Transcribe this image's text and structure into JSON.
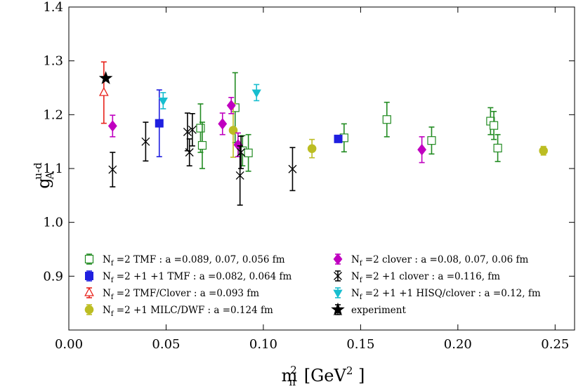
{
  "chart_data": {
    "type": "scatter",
    "title": "",
    "xlabel": "m",
    "xlabel_sub": "π",
    "xlabel_sup": "2",
    "xlabel_unit_open": "[GeV",
    "xlabel_unit_sup": "2",
    "xlabel_unit_close": " ]",
    "ylabel": "g",
    "ylabel_sub": "A",
    "ylabel_sup": "u-d",
    "xlim": [
      0.0,
      0.26
    ],
    "ylim": [
      0.8,
      1.4
    ],
    "xticks": [
      "0.00",
      "0.05",
      "0.10",
      "0.15",
      "0.20",
      "0.25"
    ],
    "xtick_values": [
      0.0,
      0.05,
      0.1,
      0.15,
      0.2,
      0.25
    ],
    "yticks": [
      "0.9",
      "1.0",
      "1.1",
      "1.2",
      "1.3",
      "1.4"
    ],
    "ytick_values": [
      0.9,
      1.0,
      1.1,
      1.2,
      1.3,
      1.4
    ],
    "grid": false,
    "legend_position": "lower center",
    "series": [
      {
        "name": "N_f =2 TMF : a =0.089, 0.07, 0.056 fm",
        "legend_parts": [
          "N",
          "f",
          " =2 TMF :  a =0.089,  0.07,  0.056 fm"
        ],
        "marker": "open-square",
        "color": "#228b22",
        "points": [
          {
            "x": 0.0677,
            "y": 1.175,
            "err": 0.045
          },
          {
            "x": 0.0686,
            "y": 1.143,
            "err": 0.043
          },
          {
            "x": 0.0855,
            "y": 1.213,
            "err": 0.065
          },
          {
            "x": 0.0893,
            "y": 1.133,
            "err": 0.028
          },
          {
            "x": 0.0923,
            "y": 1.129,
            "err": 0.034
          },
          {
            "x": 0.1415,
            "y": 1.157,
            "err": 0.026
          },
          {
            "x": 0.1635,
            "y": 1.191,
            "err": 0.032
          },
          {
            "x": 0.1865,
            "y": 1.152,
            "err": 0.025
          },
          {
            "x": 0.2168,
            "y": 1.188,
            "err": 0.025
          },
          {
            "x": 0.2185,
            "y": 1.18,
            "err": 0.026
          },
          {
            "x": 0.2205,
            "y": 1.138,
            "err": 0.025
          }
        ]
      },
      {
        "name": "N_f =2 +1 +1 TMF : a =0.082, 0.064 fm",
        "legend_parts": [
          "N",
          "f",
          " =2 +1 +1 TMF :   a =0.082,  0.064 fm"
        ],
        "marker": "filled-square",
        "color": "#1f1fe0",
        "points": [
          {
            "x": 0.0465,
            "y": 1.184,
            "err": 0.062
          },
          {
            "x": 0.1385,
            "y": 1.155,
            "err": 0.004
          }
        ]
      },
      {
        "name": "N_f =2 TMF/Clover : a =0.093 fm",
        "legend_parts": [
          "N",
          "f",
          " =2 TMF/Clover :  a =0.093 fm"
        ],
        "marker": "open-triangle-up",
        "color": "#e8231c",
        "points": [
          {
            "x": 0.018,
            "y": 1.241,
            "err": 0.057
          }
        ]
      },
      {
        "name": "N_f =2 +1 MILC/DWF : a =0.124 fm",
        "legend_parts": [
          "N",
          "f",
          " =2 +1 MILC/DWF :  a =0.124 fm"
        ],
        "marker": "filled-circle",
        "color": "#bcbd22",
        "points": [
          {
            "x": 0.0845,
            "y": 1.171,
            "err": 0.05
          },
          {
            "x": 0.125,
            "y": 1.137,
            "err": 0.017
          },
          {
            "x": 0.244,
            "y": 1.133,
            "err": 0.008
          }
        ]
      },
      {
        "name": "N_f =2 clover : a =0.08, 0.07, 0.06 fm",
        "legend_parts": [
          "N",
          "f",
          " =2 clover :  a =0.08,  0.07,  0.06 fm"
        ],
        "marker": "filled-diamond",
        "color": "#c000c0",
        "points": [
          {
            "x": 0.0225,
            "y": 1.179,
            "err": 0.02
          },
          {
            "x": 0.079,
            "y": 1.183,
            "err": 0.02
          },
          {
            "x": 0.0835,
            "y": 1.217,
            "err": 0.015
          },
          {
            "x": 0.087,
            "y": 1.144,
            "err": 0.022
          },
          {
            "x": 0.1815,
            "y": 1.135,
            "err": 0.024
          }
        ]
      },
      {
        "name": "N_f =2 +1 clover : a =0.116, fm",
        "legend_parts": [
          "N",
          "f",
          " =2 +1 clover :  a =0.116,  fm"
        ],
        "marker": "x",
        "color": "#000000",
        "points": [
          {
            "x": 0.0225,
            "y": 1.098,
            "err": 0.032
          },
          {
            "x": 0.0395,
            "y": 1.15,
            "err": 0.036
          },
          {
            "x": 0.061,
            "y": 1.168,
            "err": 0.035
          },
          {
            "x": 0.062,
            "y": 1.13,
            "err": 0.025
          },
          {
            "x": 0.0635,
            "y": 1.172,
            "err": 0.03
          },
          {
            "x": 0.088,
            "y": 1.087,
            "err": 0.055
          },
          {
            "x": 0.0885,
            "y": 1.13,
            "err": 0.03
          },
          {
            "x": 0.115,
            "y": 1.099,
            "err": 0.04
          }
        ]
      },
      {
        "name": "N_f =2 +1 +1 HISQ/clover : a =0.12, fm",
        "legend_parts": [
          "N",
          "f",
          " =2 +1 +1 HISQ/clover :  a =0.12,  fm"
        ],
        "marker": "filled-triangle-down",
        "color": "#17becf",
        "points": [
          {
            "x": 0.0485,
            "y": 1.226,
            "err": 0.015
          },
          {
            "x": 0.0965,
            "y": 1.241,
            "err": 0.015
          }
        ]
      },
      {
        "name": "experiment",
        "legend_parts": [
          "",
          "",
          "experiment"
        ],
        "marker": "star",
        "color": "#000000",
        "points": [
          {
            "x": 0.019,
            "y": 1.2676,
            "err": 0.0
          }
        ]
      }
    ]
  }
}
